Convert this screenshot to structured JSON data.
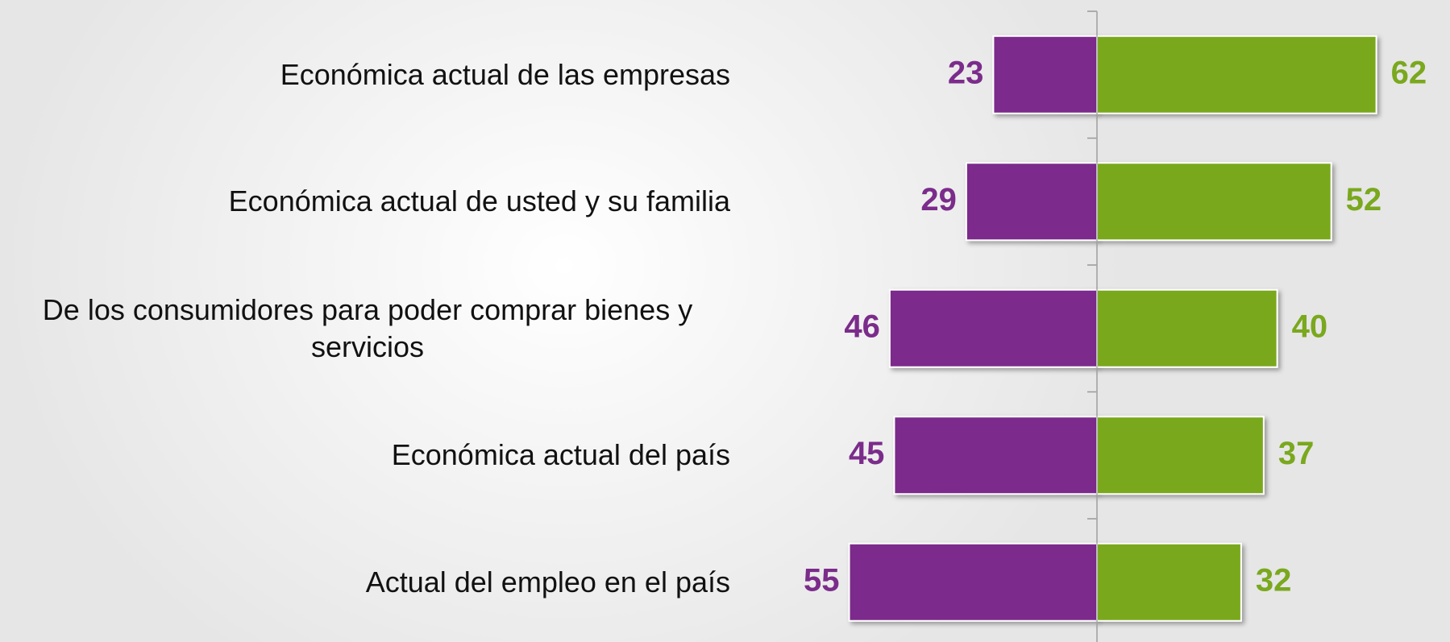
{
  "chart_data": {
    "type": "diverging-bar",
    "categories": [
      "Económica actual de las empresas",
      "Económica actual de usted y su familia",
      "De los consumidores para poder comprar bienes y servicios",
      "Económica actual del país",
      "Actual del empleo en el país"
    ],
    "series": [
      {
        "color": "#7b2c8b",
        "values": [
          23,
          29,
          46,
          45,
          55
        ]
      },
      {
        "color": "#7aa81e",
        "values": [
          62,
          52,
          40,
          37,
          32
        ]
      }
    ]
  }
}
